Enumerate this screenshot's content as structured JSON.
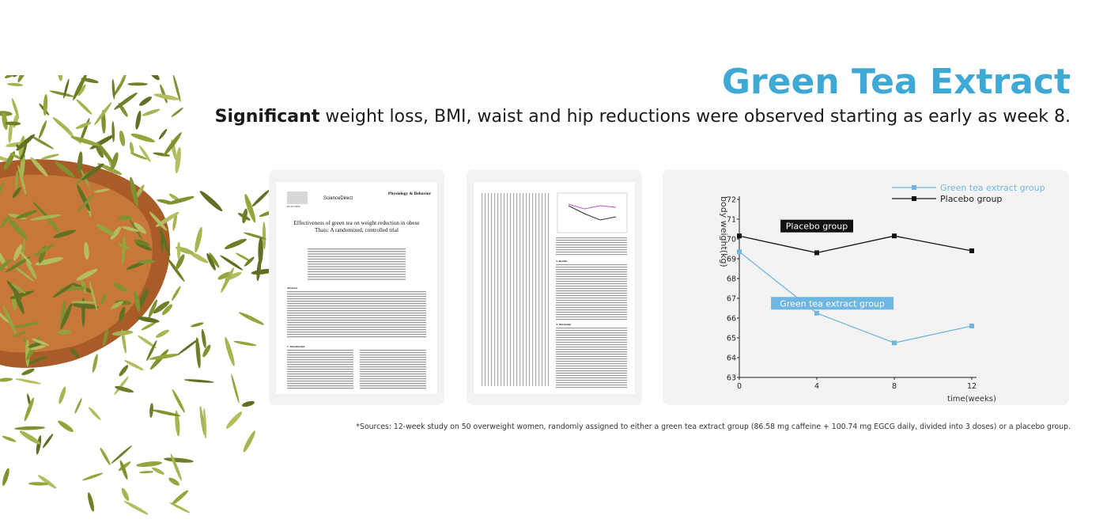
{
  "headline": "Green Tea Extract",
  "subheadline": {
    "bold": "Significant",
    "rest": " weight loss, BMI, waist and hip reductions were observed starting as early as week 8."
  },
  "paper_card_1": {
    "sciencedirect": "ScienceDirect",
    "elsevier": "ELSEVIER",
    "journal": "Physiology & Behavior",
    "title": "Effectiveness of green tea on weight reduction in obese Thais: A randomized, controlled trial",
    "abstract_heading": "Abstract",
    "intro_heading": "1. Introduction"
  },
  "paper_card_2": {
    "results_heading": "3. Results",
    "discussion_heading": "4. Discussion"
  },
  "chart_data": {
    "type": "line",
    "x": [
      0,
      4,
      8,
      12
    ],
    "xlabel": "time(weeks)",
    "ylabel": "body weight(kg)",
    "ylim": [
      63,
      72
    ],
    "yticks": [
      63,
      64,
      65,
      66,
      67,
      68,
      69,
      70,
      71,
      72
    ],
    "xticks": [
      0,
      4,
      8,
      12
    ],
    "grid": false,
    "legend_position": "top-right",
    "series": [
      {
        "name": "Green tea extract group",
        "values": [
          69.35,
          66.25,
          64.75,
          65.6
        ],
        "color": "#6fb6e0",
        "marker": "square"
      },
      {
        "name": "Placebo group",
        "values": [
          70.15,
          69.3,
          70.15,
          69.4
        ],
        "color": "#111111",
        "marker": "square"
      }
    ],
    "annotations": [
      {
        "text": "Placebo group",
        "x": 4,
        "y": 70.65,
        "style": "dark"
      },
      {
        "text": "Green tea extract group",
        "x": 4.8,
        "y": 66.75,
        "style": "blue"
      }
    ]
  },
  "sources": "*Sources: 12-week study on 50 overweight women, randomly assigned to either a green tea extract group (86.58 mg caffeine + 100.74 mg EGCG daily, divided into 3 doses) or a placebo group.",
  "colors": {
    "accent": "#3ea9d5",
    "green_series": "#6fb6e0",
    "placebo_series": "#111111",
    "card_bg": "#f3f3f3",
    "tea_leaf": "#8a9c3a",
    "bowl": "#b0652e"
  }
}
